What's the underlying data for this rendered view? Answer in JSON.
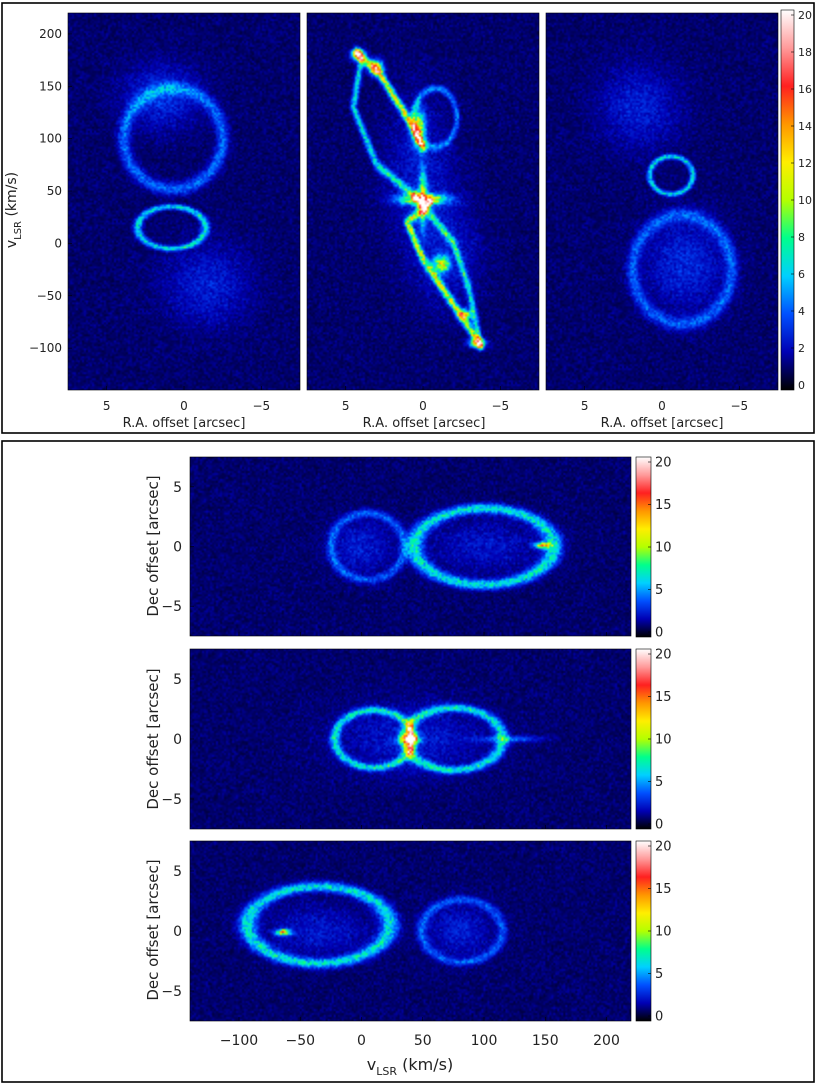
{
  "colors": {
    "background": "#00147a",
    "colormap": [
      "#000000",
      "#0000b4",
      "#0050ff",
      "#00d0ff",
      "#00ff8c",
      "#b4ff00",
      "#ffee00",
      "#ff9600",
      "#ff2020",
      "#ff9a9a",
      "#ffffff"
    ]
  },
  "top_panel": {
    "xlabel": "R.A. offset [arcsec]",
    "ylabel_main": "v",
    "ylabel_sub": "LSR",
    "ylabel_unit": " (km/s)"
  },
  "bottom_panel": {
    "ylabel": "Dec offset [arcsec]",
    "xlabel_main": "v",
    "xlabel_sub": "LSR",
    "xlabel_unit": " (km/s)"
  },
  "chart_data": [
    {
      "type": "heatmap",
      "panel": "top-left",
      "x_ticks": [
        "5",
        "0",
        "−5"
      ],
      "y_ticks": [
        "200",
        "150",
        "100",
        "50",
        "0",
        "−50",
        "−100"
      ],
      "xlim": [
        7.5,
        -7.5
      ],
      "ylim": [
        -140,
        220
      ],
      "features": [
        {
          "type": "ellipse",
          "cx": 0.7,
          "cy": 100,
          "rx": 3.2,
          "ry": 48,
          "i": 0.28
        },
        {
          "type": "ellipse",
          "cx": 0.8,
          "cy": 15,
          "rx": 2.2,
          "ry": 20,
          "i": 0.5
        },
        {
          "type": "blob",
          "cx": -1.5,
          "cy": -40,
          "rx": 3.2,
          "ry": 45,
          "i": 0.14
        },
        {
          "type": "blob",
          "cx": 1.5,
          "cy": 140,
          "rx": 2.8,
          "ry": 35,
          "i": 0.18
        }
      ]
    },
    {
      "type": "heatmap",
      "panel": "top-center",
      "x_ticks": [
        "5",
        "0",
        "−5"
      ],
      "xlim": [
        7.5,
        -7.5
      ],
      "ylim": [
        -140,
        220
      ],
      "features": [
        {
          "type": "curve",
          "pts": [
            [
              4.3,
              182
            ],
            [
              2.8,
              162
            ],
            [
              1.0,
              120
            ],
            [
              0.0,
              92
            ]
          ],
          "i": 0.9
        },
        {
          "type": "curve",
          "pts": [
            [
              4.0,
              175
            ],
            [
              4.5,
              130
            ],
            [
              3.0,
              75
            ],
            [
              0.5,
              45
            ]
          ],
          "i": 0.5
        },
        {
          "type": "curve",
          "pts": [
            [
              0.5,
              45
            ],
            [
              -2.0,
              0
            ],
            [
              -3.0,
              -45
            ],
            [
              -3.7,
              -97
            ]
          ],
          "i": 0.5
        },
        {
          "type": "curve",
          "pts": [
            [
              -0.5,
              40
            ],
            [
              1.0,
              20
            ],
            [
              0.0,
              -15
            ],
            [
              -2.5,
              -70
            ],
            [
              -3.7,
              -97
            ]
          ],
          "i": 0.8
        },
        {
          "type": "ellipse",
          "cx": -0.8,
          "cy": 120,
          "rx": 1.4,
          "ry": 28,
          "i": 0.3
        },
        {
          "type": "blob",
          "cx": 0.0,
          "cy": 42,
          "rx": 1.8,
          "ry": 6,
          "i": 1.0
        },
        {
          "type": "blob",
          "cx": 0.0,
          "cy": 42,
          "rx": 0.3,
          "ry": 30,
          "i": 0.9
        },
        {
          "type": "blob",
          "cx": 4.2,
          "cy": 180,
          "rx": 0.5,
          "ry": 6,
          "i": 1.0
        },
        {
          "type": "blob",
          "cx": 3.0,
          "cy": 168,
          "rx": 0.5,
          "ry": 8,
          "i": 0.95
        },
        {
          "type": "blob",
          "cx": 0.3,
          "cy": 110,
          "rx": 0.5,
          "ry": 20,
          "i": 0.9
        },
        {
          "type": "blob",
          "cx": -1.2,
          "cy": -20,
          "rx": 0.6,
          "ry": 9,
          "i": 0.9
        },
        {
          "type": "blob",
          "cx": -2.7,
          "cy": -68,
          "rx": 0.5,
          "ry": 6,
          "i": 0.9
        },
        {
          "type": "blob",
          "cx": -3.5,
          "cy": -95,
          "rx": 0.6,
          "ry": 5,
          "i": 0.9
        },
        {
          "type": "blob",
          "cx": 0.3,
          "cy": 70,
          "rx": 2.5,
          "ry": 80,
          "i": 0.12
        },
        {
          "type": "blob",
          "cx": -1.5,
          "cy": -10,
          "rx": 2.5,
          "ry": 60,
          "i": 0.12
        }
      ]
    },
    {
      "type": "heatmap",
      "panel": "top-right",
      "x_ticks": [
        "5",
        "0",
        "−5"
      ],
      "xlim": [
        7.5,
        -7.5
      ],
      "ylim": [
        -140,
        220
      ],
      "features": [
        {
          "type": "ellipse",
          "cx": -0.6,
          "cy": 65,
          "rx": 1.4,
          "ry": 18,
          "i": 0.5
        },
        {
          "type": "ellipse",
          "cx": -1.3,
          "cy": -25,
          "rx": 3.2,
          "ry": 52,
          "i": 0.24
        },
        {
          "type": "blob",
          "cx": 1.5,
          "cy": 130,
          "rx": 3.0,
          "ry": 45,
          "i": 0.14
        },
        {
          "type": "blob",
          "cx": -1.5,
          "cy": -20,
          "rx": 3.0,
          "ry": 50,
          "i": 0.16
        }
      ]
    },
    {
      "type": "heatmap",
      "panel": "bottom-1",
      "x_ticks": [
        "−100",
        "−50",
        "0",
        "50",
        "100",
        "150",
        "200"
      ],
      "y_ticks": [
        "5",
        "0",
        "−5"
      ],
      "xlim": [
        -140,
        220
      ],
      "ylim": [
        -7.5,
        7.5
      ],
      "colorbar_ticks": [
        "20",
        "15",
        "10",
        "5",
        "0"
      ],
      "features": [
        {
          "type": "ellipse",
          "cx": 100,
          "cy": 0,
          "rx": 57,
          "ry": 3.2,
          "i": 0.5
        },
        {
          "type": "ellipse",
          "cx": 5,
          "cy": 0,
          "rx": 30,
          "ry": 2.8,
          "i": 0.24
        },
        {
          "type": "blob",
          "cx": 148,
          "cy": 0.1,
          "rx": 8,
          "ry": 0.3,
          "i": 1.0
        },
        {
          "type": "blob",
          "cx": 100,
          "cy": 0,
          "rx": 50,
          "ry": 2.5,
          "i": 0.12
        },
        {
          "type": "blob",
          "cx": 0,
          "cy": 0,
          "rx": 30,
          "ry": 2.5,
          "i": 0.14
        }
      ]
    },
    {
      "type": "heatmap",
      "panel": "bottom-2",
      "x_ticks": [
        "−100",
        "−50",
        "0",
        "50",
        "100",
        "150",
        "200"
      ],
      "y_ticks": [
        "5",
        "0",
        "−5"
      ],
      "xlim": [
        -140,
        220
      ],
      "ylim": [
        -7.5,
        7.5
      ],
      "colorbar_ticks": [
        "20",
        "15",
        "10",
        "5",
        "0"
      ],
      "features": [
        {
          "type": "ellipse",
          "cx": 10,
          "cy": 0,
          "rx": 32,
          "ry": 2.4,
          "i": 0.5
        },
        {
          "type": "ellipse",
          "cx": 75,
          "cy": 0,
          "rx": 40,
          "ry": 2.6,
          "i": 0.5
        },
        {
          "type": "blob",
          "cx": 40,
          "cy": 0,
          "rx": 9,
          "ry": 0.4,
          "i": 1.0
        },
        {
          "type": "blob",
          "cx": 40,
          "cy": 0,
          "rx": 3,
          "ry": 1.5,
          "i": 0.95
        },
        {
          "type": "blob",
          "cx": 40,
          "cy": 0,
          "rx": 70,
          "ry": 3.5,
          "i": 0.13
        },
        {
          "type": "blob",
          "cx": 120,
          "cy": 0,
          "rx": 30,
          "ry": 0.3,
          "i": 0.3
        }
      ]
    },
    {
      "type": "heatmap",
      "panel": "bottom-3",
      "x_ticks": [
        "−100",
        "−50",
        "0",
        "50",
        "100",
        "150",
        "200"
      ],
      "y_ticks": [
        "5",
        "0",
        "−5"
      ],
      "xlim": [
        -140,
        220
      ],
      "ylim": [
        -7.5,
        7.5
      ],
      "colorbar_ticks": [
        "20",
        "15",
        "10",
        "5",
        "0"
      ],
      "features": [
        {
          "type": "ellipse",
          "cx": -35,
          "cy": 0.5,
          "rx": 58,
          "ry": 3.2,
          "i": 0.5
        },
        {
          "type": "ellipse",
          "cx": 82,
          "cy": 0,
          "rx": 33,
          "ry": 2.6,
          "i": 0.24
        },
        {
          "type": "blob",
          "cx": -64,
          "cy": -0.1,
          "rx": 7,
          "ry": 0.3,
          "i": 1.0
        },
        {
          "type": "blob",
          "cx": -35,
          "cy": 0,
          "rx": 50,
          "ry": 2.5,
          "i": 0.12
        },
        {
          "type": "blob",
          "cx": 80,
          "cy": 0,
          "rx": 30,
          "ry": 2.5,
          "i": 0.14
        }
      ]
    }
  ],
  "top_colorbar_ticks": [
    "20",
    "18",
    "16",
    "14",
    "12",
    "10",
    "8",
    "6",
    "4",
    "2",
    "0"
  ]
}
